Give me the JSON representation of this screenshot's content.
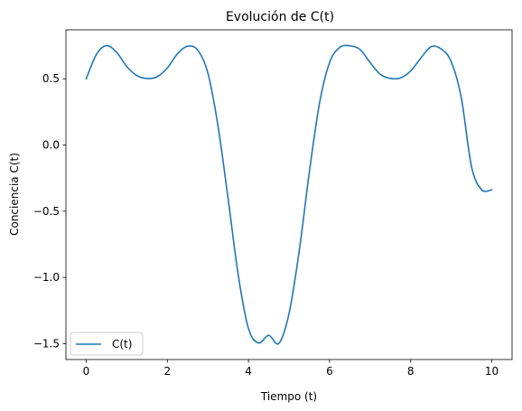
{
  "chart_data": {
    "type": "line",
    "title": "Evolución de C(t)",
    "xlabel": "Tiempo (t)",
    "ylabel": "Conciencia C(t)",
    "xlim": [
      -0.5,
      10.5
    ],
    "ylim": [
      -1.62,
      0.87
    ],
    "xticks": [
      0,
      2,
      4,
      6,
      8,
      10
    ],
    "xtick_labels": [
      "0",
      "2",
      "4",
      "6",
      "8",
      "10"
    ],
    "yticks": [
      -1.5,
      -1.0,
      -0.5,
      0.0,
      0.5
    ],
    "ytick_labels": [
      "−1.5",
      "−1.0",
      "−0.5",
      "0.0",
      "0.5"
    ],
    "grid": false,
    "legend_position": "lower-left",
    "series": [
      {
        "name": "C(t)",
        "color": "#1f77b4",
        "x": [
          0.0,
          0.25,
          0.5,
          0.75,
          1.0,
          1.25,
          1.5,
          1.75,
          2.0,
          2.25,
          2.5,
          2.75,
          3.0,
          3.25,
          3.5,
          3.75,
          4.0,
          4.25,
          4.5,
          4.75,
          5.0,
          5.25,
          5.5,
          5.75,
          6.0,
          6.25,
          6.5,
          6.75,
          7.0,
          7.25,
          7.5,
          7.75,
          8.0,
          8.25,
          8.5,
          8.75,
          9.0,
          9.25,
          9.5,
          9.75,
          10.0
        ],
        "y": [
          0.5,
          0.683,
          0.75,
          0.7,
          0.593,
          0.524,
          0.502,
          0.516,
          0.582,
          0.689,
          0.746,
          0.716,
          0.544,
          0.143,
          -0.408,
          -0.985,
          -1.385,
          -1.495,
          -1.437,
          -1.498,
          -1.274,
          -0.805,
          -0.209,
          0.312,
          0.623,
          0.737,
          0.749,
          0.722,
          0.623,
          0.534,
          0.503,
          0.507,
          0.559,
          0.656,
          0.742,
          0.726,
          0.629,
          0.353,
          -0.163,
          -0.338,
          -0.338
        ]
      }
    ]
  }
}
